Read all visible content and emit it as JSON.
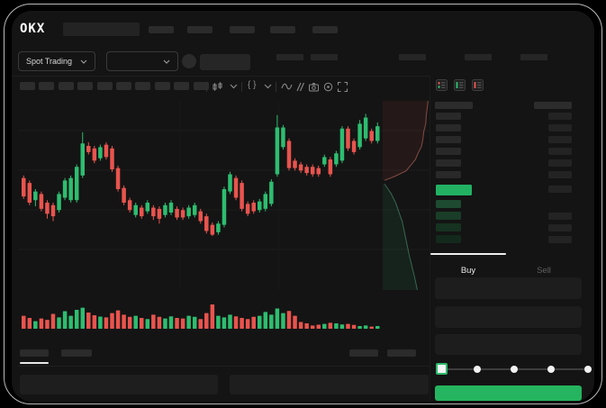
{
  "app": {
    "logo_text": "OKX"
  },
  "header": {
    "market_mode_label": "Spot Trading",
    "nav_items": 5,
    "ticker_stats": 5
  },
  "toolbar": {
    "chip_count": 10,
    "icons": [
      "chart-type",
      "chevron-down",
      "interval-chevron",
      "indicator-template",
      "chevron-down",
      "wave-indicators",
      "compare",
      "camera-snapshot",
      "settings",
      "fullscreen"
    ]
  },
  "orderbook": {
    "view_modes": [
      "book-combined",
      "book-bids-only",
      "book-asks-only"
    ],
    "ask_rows": 6,
    "bid_rows": 4,
    "bid_rows_with_right_bar": [
      1,
      2,
      3
    ],
    "bid_row_colors": [
      "#1d4a30",
      "#193d28",
      "#163221",
      "#12291b"
    ]
  },
  "order_panel": {
    "buy_tab_label": "Buy",
    "sell_tab_label": "Sell",
    "fields": 3,
    "slider": {
      "steps": 5,
      "active_step": 0
    }
  },
  "colors": {
    "up": "#2ebd70",
    "down": "#e8544e",
    "accent_green": "#25b45f",
    "price_highlight": "#22b163",
    "depth_ask_fill": "rgba(232,84,78,0.08)",
    "depth_ask_line": "rgba(219,118,105,0.55)",
    "depth_bid_fill": "rgba(46,189,112,0.09)",
    "depth_bid_line": "rgba(86,168,128,0.55)"
  },
  "chart_data": {
    "type": "candlestick",
    "title": "",
    "xlabel": "",
    "ylabel": "",
    "axis_labels_visible": false,
    "grid": "faint-horizontal",
    "price_scale": [
      0,
      100
    ],
    "candles_format": [
      "dir(1=up,0=down)",
      "bodyLow",
      "bodyHigh",
      "wickLow",
      "wickHigh"
    ],
    "candles": [
      [
        0,
        32,
        47,
        30,
        49
      ],
      [
        0,
        27,
        43,
        25,
        45
      ],
      [
        1,
        29,
        36,
        24,
        38
      ],
      [
        0,
        22,
        34,
        20,
        36
      ],
      [
        0,
        18,
        27,
        14,
        29
      ],
      [
        0,
        16,
        25,
        12,
        27
      ],
      [
        1,
        21,
        34,
        19,
        36
      ],
      [
        1,
        31,
        45,
        29,
        47
      ],
      [
        1,
        29,
        47,
        27,
        49
      ],
      [
        1,
        29,
        56,
        27,
        58
      ],
      [
        1,
        49,
        75,
        47,
        84
      ],
      [
        0,
        68,
        73,
        66,
        76
      ],
      [
        0,
        61,
        71,
        59,
        73
      ],
      [
        1,
        63,
        72,
        61,
        74
      ],
      [
        0,
        64,
        74,
        62,
        76
      ],
      [
        0,
        54,
        71,
        52,
        73
      ],
      [
        0,
        38,
        55,
        36,
        57
      ],
      [
        0,
        27,
        39,
        25,
        41
      ],
      [
        0,
        21,
        29,
        19,
        31
      ],
      [
        1,
        17,
        25,
        15,
        27
      ],
      [
        0,
        16,
        23,
        14,
        25
      ],
      [
        1,
        20,
        27,
        18,
        29
      ],
      [
        0,
        16,
        23,
        13,
        25
      ],
      [
        0,
        14,
        22,
        10,
        24
      ],
      [
        1,
        17,
        25,
        15,
        27
      ],
      [
        1,
        19,
        27,
        17,
        29
      ],
      [
        0,
        15,
        22,
        13,
        24
      ],
      [
        0,
        15,
        21,
        13,
        23
      ],
      [
        1,
        16,
        23,
        14,
        25
      ],
      [
        1,
        17,
        25,
        15,
        27
      ],
      [
        0,
        12,
        20,
        10,
        22
      ],
      [
        0,
        4,
        16,
        2,
        18
      ],
      [
        0,
        1,
        9,
        0,
        11
      ],
      [
        1,
        3,
        10,
        1,
        12
      ],
      [
        1,
        9,
        38,
        7,
        40
      ],
      [
        1,
        36,
        50,
        34,
        52
      ],
      [
        0,
        31,
        47,
        29,
        49
      ],
      [
        0,
        22,
        43,
        20,
        45
      ],
      [
        0,
        18,
        26,
        16,
        28
      ],
      [
        0,
        20,
        27,
        18,
        29
      ],
      [
        1,
        21,
        28,
        19,
        30
      ],
      [
        1,
        22,
        34,
        20,
        36
      ],
      [
        1,
        26,
        44,
        24,
        46
      ],
      [
        1,
        50,
        88,
        48,
        98
      ],
      [
        1,
        72,
        88,
        70,
        90
      ],
      [
        0,
        55,
        77,
        53,
        79
      ],
      [
        0,
        55,
        61,
        53,
        63
      ],
      [
        0,
        53,
        58,
        51,
        60
      ],
      [
        0,
        51,
        56,
        49,
        58
      ],
      [
        0,
        50,
        56,
        48,
        58
      ],
      [
        0,
        50,
        55,
        48,
        57
      ],
      [
        1,
        58,
        64,
        56,
        66
      ],
      [
        0,
        50,
        62,
        48,
        64
      ],
      [
        1,
        58,
        67,
        56,
        69
      ],
      [
        1,
        61,
        87,
        59,
        89
      ],
      [
        0,
        71,
        87,
        69,
        89
      ],
      [
        0,
        68,
        77,
        66,
        79
      ],
      [
        1,
        72,
        91,
        70,
        94
      ],
      [
        1,
        79,
        96,
        77,
        99
      ],
      [
        0,
        77,
        85,
        75,
        87
      ],
      [
        1,
        77,
        89,
        75,
        92
      ]
    ],
    "volume_scale": [
      0,
      100
    ],
    "volume": [
      48,
      40,
      28,
      38,
      33,
      55,
      42,
      65,
      48,
      70,
      78,
      60,
      50,
      45,
      42,
      58,
      68,
      52,
      44,
      48,
      40,
      36,
      52,
      44,
      38,
      46,
      40,
      38,
      48,
      44,
      36,
      58,
      90,
      48,
      42,
      52,
      46,
      40,
      36,
      44,
      48,
      62,
      52,
      75,
      58,
      66,
      48,
      25,
      20,
      12,
      15,
      18,
      22,
      20,
      16,
      18,
      14,
      10,
      12,
      8,
      10
    ],
    "depth": {
      "asks_pct": [
        [
          97,
          0
        ],
        [
          95,
          4
        ],
        [
          93,
          8
        ],
        [
          92,
          12
        ],
        [
          88,
          16
        ],
        [
          86,
          20
        ],
        [
          83,
          24
        ],
        [
          75,
          28
        ],
        [
          70,
          31
        ],
        [
          60,
          34
        ],
        [
          50,
          37
        ],
        [
          25,
          40
        ],
        [
          4,
          42
        ]
      ],
      "bids_pct": [
        [
          4,
          44
        ],
        [
          18,
          49
        ],
        [
          28,
          54
        ],
        [
          35,
          59
        ],
        [
          42,
          64
        ],
        [
          47,
          70
        ],
        [
          52,
          76
        ],
        [
          57,
          82
        ],
        [
          63,
          88
        ],
        [
          68,
          93
        ],
        [
          74,
          100
        ]
      ]
    }
  }
}
